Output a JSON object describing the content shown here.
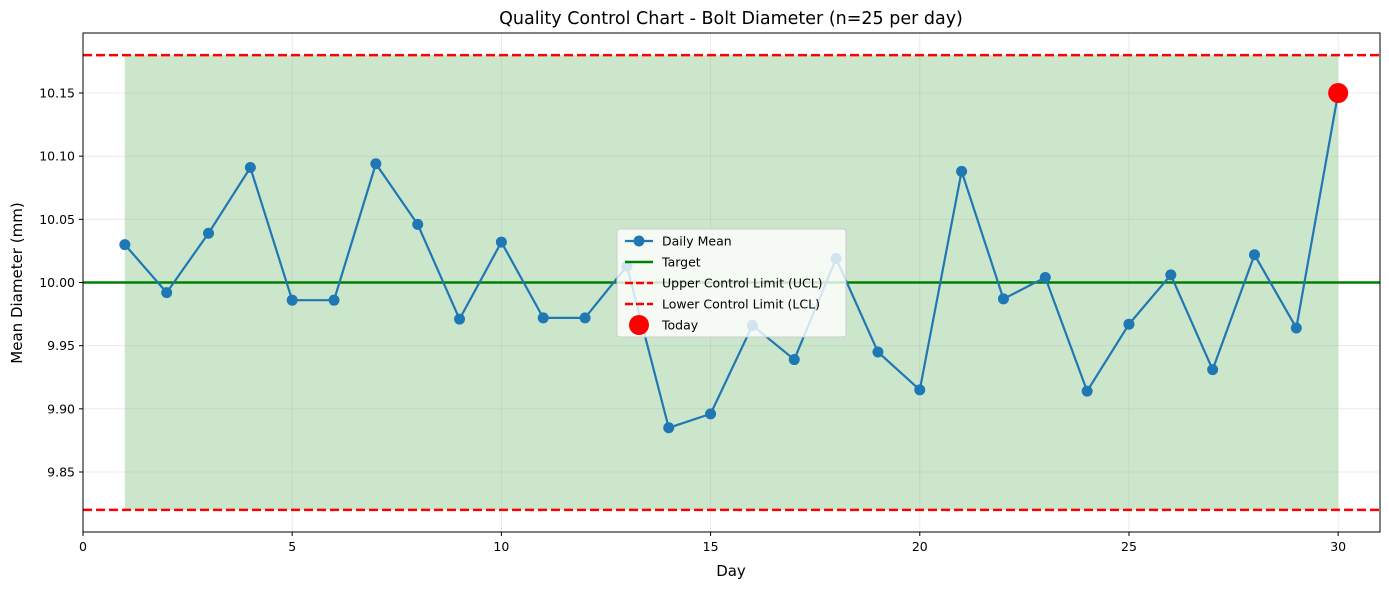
{
  "chart_data": {
    "type": "line",
    "title": "Quality Control Chart - Bolt Diameter (n=25 per day)",
    "xlabel": "Day",
    "ylabel": "Mean Diameter (mm)",
    "xlim": [
      0,
      31
    ],
    "ylim": [
      9.8025,
      10.1975
    ],
    "xticks": [
      0,
      5,
      10,
      15,
      20,
      25,
      30
    ],
    "yticks": [
      9.85,
      9.9,
      9.95,
      10.0,
      10.05,
      10.1,
      10.15
    ],
    "ytick_labels": [
      "9.85",
      "9.90",
      "9.95",
      "10.00",
      "10.05",
      "10.10",
      "10.15"
    ],
    "grid": true,
    "legend_position": "center",
    "series": [
      {
        "name": "Daily Mean",
        "color": "#1f77b4",
        "x": [
          1,
          2,
          3,
          4,
          5,
          6,
          7,
          8,
          9,
          10,
          11,
          12,
          13,
          14,
          15,
          16,
          17,
          18,
          19,
          20,
          21,
          22,
          23,
          24,
          25,
          26,
          27,
          28,
          29,
          30
        ],
        "values": [
          10.03,
          9.992,
          10.039,
          10.091,
          9.986,
          9.986,
          10.094,
          10.046,
          9.971,
          10.032,
          9.972,
          9.972,
          10.013,
          9.885,
          9.896,
          9.966,
          9.939,
          10.019,
          9.945,
          9.915,
          10.088,
          9.987,
          10.004,
          9.914,
          9.967,
          10.006,
          9.931,
          10.022,
          9.964,
          10.15
        ]
      }
    ],
    "target": {
      "name": "Target",
      "value": 10.0,
      "color": "#008000"
    },
    "ucl": {
      "name": "Upper Control Limit (UCL)",
      "value": 10.18,
      "color": "#ff0000"
    },
    "lcl": {
      "name": "Lower Control Limit (LCL)",
      "value": 9.82,
      "color": "#ff0000"
    },
    "today": {
      "name": "Today",
      "x": 30,
      "value": 10.15,
      "color": "#ff0000"
    },
    "control_band": {
      "x_start": 1,
      "x_end": 30,
      "color": "#008000"
    }
  }
}
